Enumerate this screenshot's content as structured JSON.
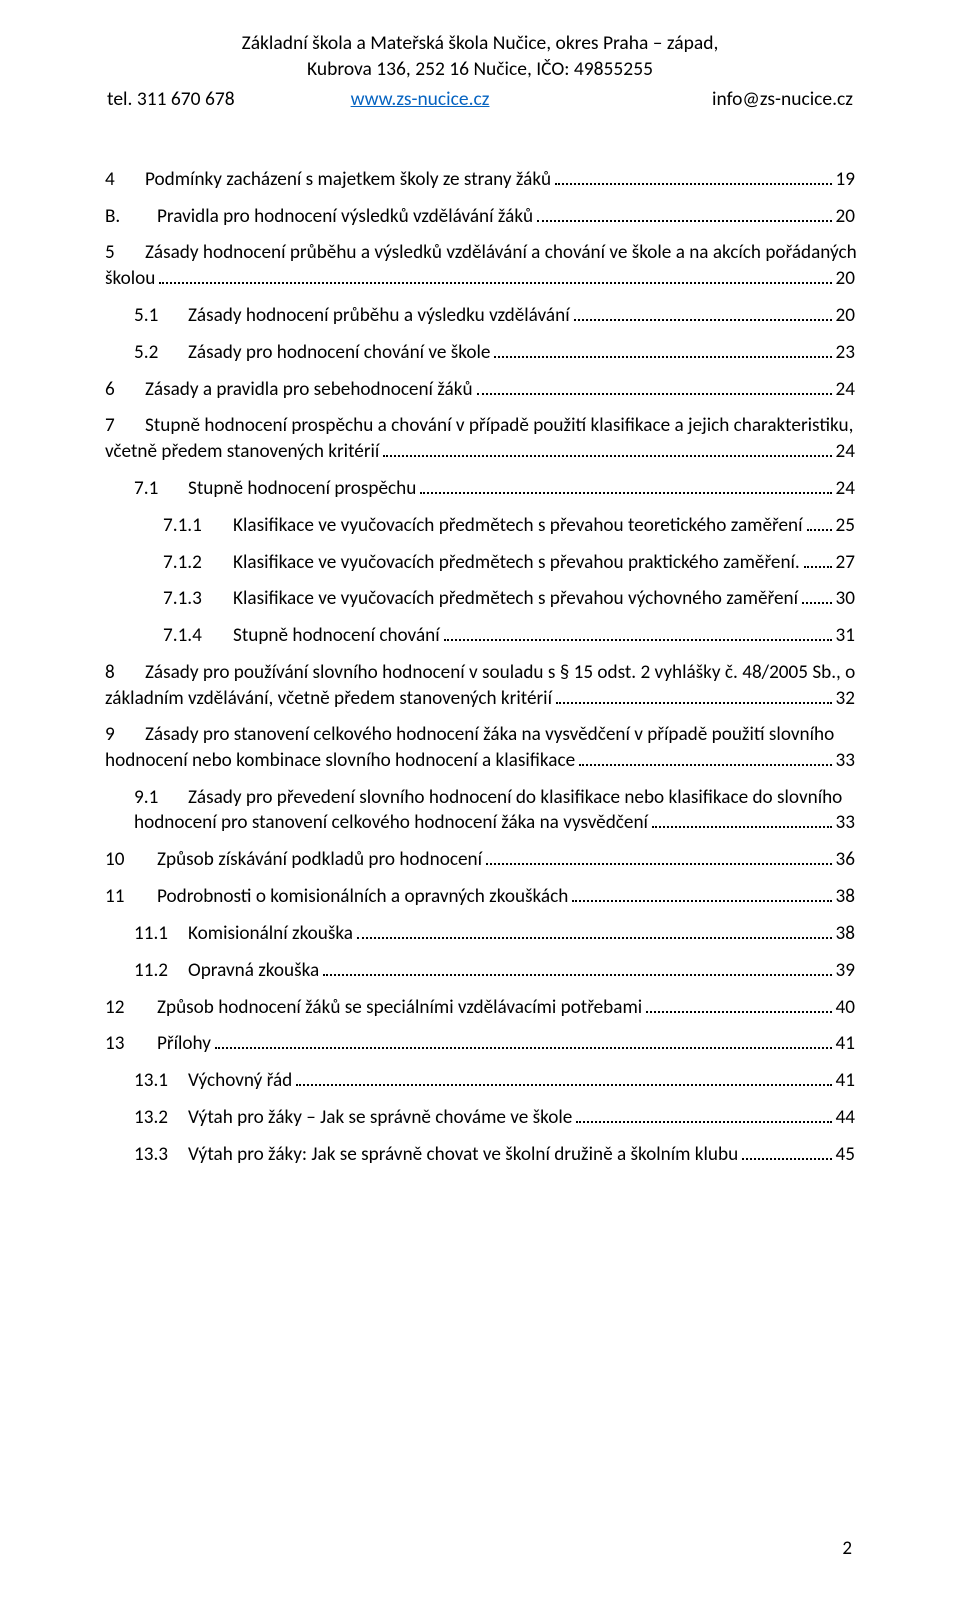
{
  "header": {
    "line1": "Základní škola a Mateřská škola Nučice, okres Praha – západ,",
    "line2": "Kubrova 136, 252 16 Nučice, IČO: 49855255",
    "tel": "tel. 311 670 678",
    "www": "www.zs-nucice.cz",
    "email": "info@zs-nucice.cz"
  },
  "toc": [
    {
      "level": 0,
      "num": "4",
      "text": "Podmínky zacházení s majetkem školy ze strany žáků",
      "page": "19"
    },
    {
      "level": 0,
      "num": "B.",
      "text": "Pravidla pro hodnocení výsledků vzdělávání žáků",
      "page": "20"
    },
    {
      "level": 0,
      "num": "5",
      "wrapFirst": "Zásady hodnocení průběhu a výsledků vzdělávání a chování ve škole a na akcích pořádaných",
      "wrapSecond": "školou",
      "page": "20"
    },
    {
      "level": 1,
      "num": "5.1",
      "text": "Zásady hodnocení průběhu a výsledku vzdělávání",
      "page": "20"
    },
    {
      "level": 1,
      "num": "5.2",
      "text": "Zásady pro hodnocení chování ve škole",
      "page": "23"
    },
    {
      "level": 0,
      "num": "6",
      "text": "Zásady a pravidla pro sebehodnocení žáků",
      "page": "24"
    },
    {
      "level": 0,
      "num": "7",
      "wrapFirst": "Stupně hodnocení prospěchu a chování v případě použití klasifikace a jejich charakteristiku,",
      "wrapSecond": "včetně předem stanovených kritérií",
      "page": "24"
    },
    {
      "level": 1,
      "num": "7.1",
      "text": "Stupně hodnocení prospěchu",
      "page": "24"
    },
    {
      "level": 2,
      "num": "7.1.1",
      "text": "Klasifikace ve vyučovacích předmětech s převahou teoretického zaměření",
      "page": "25"
    },
    {
      "level": 2,
      "num": "7.1.2",
      "text": "Klasifikace ve vyučovacích předmětech s převahou praktického zaměření.",
      "page": "27"
    },
    {
      "level": 2,
      "num": "7.1.3",
      "text": "Klasifikace ve vyučovacích předmětech s převahou výchovného zaměření",
      "page": "30"
    },
    {
      "level": 2,
      "num": "7.1.4",
      "text": "Stupně hodnocení chování",
      "page": "31"
    },
    {
      "level": 0,
      "num": "8",
      "wrapFirst": "Zásady pro používání slovního hodnocení v souladu s § 15 odst. 2 vyhlášky č. 48/2005 Sb., o",
      "wrapSecond": "základním vzdělávání, včetně předem stanovených kritérií",
      "page": "32"
    },
    {
      "level": 0,
      "num": "9",
      "wrapFirst": "Zásady pro stanovení celkového hodnocení žáka na vysvědčení v případě použití slovního",
      "wrapSecond": "hodnocení nebo kombinace slovního hodnocení a klasifikace",
      "page": "33"
    },
    {
      "level": 1,
      "num": "9.1",
      "wrapFirst": "Zásady pro převedení slovního hodnocení do klasifikace nebo klasifikace do slovního",
      "wrapSecond": "hodnocení pro stanovení celkového hodnocení žáka na vysvědčení",
      "page": "33"
    },
    {
      "level": 0,
      "num": "10",
      "text": "Způsob získávání podkladů pro hodnocení",
      "page": "36"
    },
    {
      "level": 0,
      "num": "11",
      "text": "Podrobnosti o komisionálních a opravných zkouškách",
      "page": "38"
    },
    {
      "level": 1,
      "num": "11.1",
      "text": "Komisionální zkouška",
      "page": "38"
    },
    {
      "level": 1,
      "num": "11.2",
      "text": "Opravná zkouška",
      "page": "39"
    },
    {
      "level": 0,
      "num": "12",
      "text": "Způsob hodnocení žáků se speciálními vzdělávacími potřebami",
      "page": "40"
    },
    {
      "level": 0,
      "num": "13",
      "text": "Přílohy",
      "page": "41"
    },
    {
      "level": 1,
      "num": "13.1",
      "text": "Výchovný řád",
      "page": "41"
    },
    {
      "level": 1,
      "num": "13.2",
      "text": "Výtah pro žáky – Jak se správně chováme ve škole",
      "page": "44"
    },
    {
      "level": 1,
      "num": "13.3",
      "text": "Výtah pro žáky: Jak se správně chovat ve školní družině a školním klubu",
      "page": "45"
    }
  ],
  "pageNumber": "2",
  "layout": {
    "numColL0": "40px",
    "numColL0Long": "52px",
    "numColL1": "54px",
    "numColL2": "70px"
  }
}
